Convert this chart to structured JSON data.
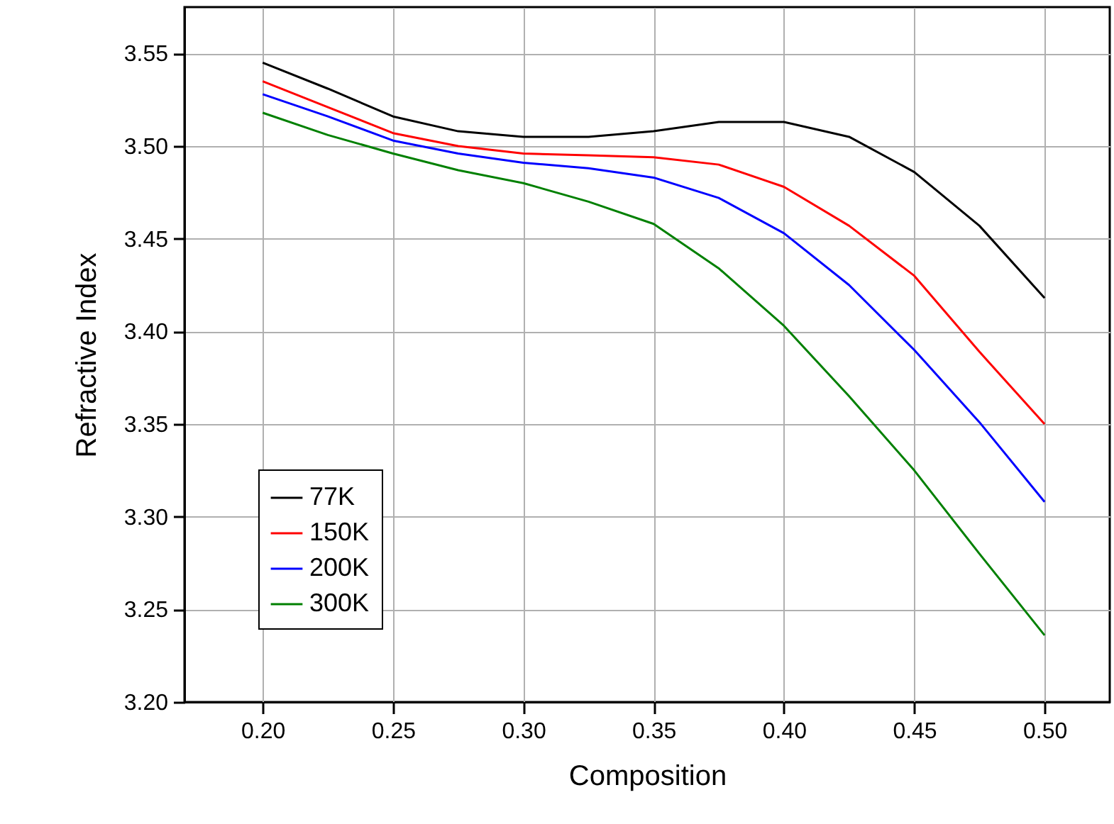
{
  "chart_data": {
    "type": "line",
    "xlabel": "Composition",
    "ylabel": "Refractive Index",
    "x": [
      0.2,
      0.225,
      0.25,
      0.275,
      0.3,
      0.325,
      0.35,
      0.375,
      0.4,
      0.425,
      0.45,
      0.475,
      0.5
    ],
    "series": [
      {
        "name": "77K",
        "color": "#000000",
        "values": [
          3.545,
          3.531,
          3.516,
          3.508,
          3.505,
          3.505,
          3.508,
          3.513,
          3.513,
          3.505,
          3.486,
          3.457,
          3.418
        ]
      },
      {
        "name": "150K",
        "color": "#ff0000",
        "values": [
          3.535,
          3.521,
          3.507,
          3.5,
          3.496,
          3.495,
          3.494,
          3.49,
          3.478,
          3.457,
          3.43,
          3.389,
          3.35
        ]
      },
      {
        "name": "200K",
        "color": "#0000ff",
        "values": [
          3.528,
          3.516,
          3.503,
          3.496,
          3.491,
          3.488,
          3.483,
          3.472,
          3.453,
          3.425,
          3.39,
          3.351,
          3.308
        ]
      },
      {
        "name": "300K",
        "color": "#008000",
        "values": [
          3.518,
          3.506,
          3.496,
          3.487,
          3.48,
          3.47,
          3.458,
          3.434,
          3.403,
          3.365,
          3.325,
          3.28,
          3.236
        ]
      }
    ],
    "xlim": [
      0.17,
      0.525
    ],
    "xticks": [
      {
        "value": 0.2,
        "label": "0.20"
      },
      {
        "value": 0.25,
        "label": "0.25"
      },
      {
        "value": 0.3,
        "label": "0.30"
      },
      {
        "value": 0.35,
        "label": "0.35"
      },
      {
        "value": 0.4,
        "label": "0.40"
      },
      {
        "value": 0.45,
        "label": "0.45"
      },
      {
        "value": 0.5,
        "label": "0.50"
      }
    ],
    "ylim": [
      3.2,
      3.575
    ],
    "yticks": [
      {
        "value": 3.2,
        "label": "3.20"
      },
      {
        "value": 3.25,
        "label": "3.25"
      },
      {
        "value": 3.3,
        "label": "3.30"
      },
      {
        "value": 3.35,
        "label": "3.35"
      },
      {
        "value": 3.4,
        "label": "3.40"
      },
      {
        "value": 3.45,
        "label": "3.45"
      },
      {
        "value": 3.5,
        "label": "3.50"
      },
      {
        "value": 3.55,
        "label": "3.55"
      }
    ],
    "grid": true,
    "legend": "bottom left",
    "line_style": "solid",
    "marker": "none"
  }
}
